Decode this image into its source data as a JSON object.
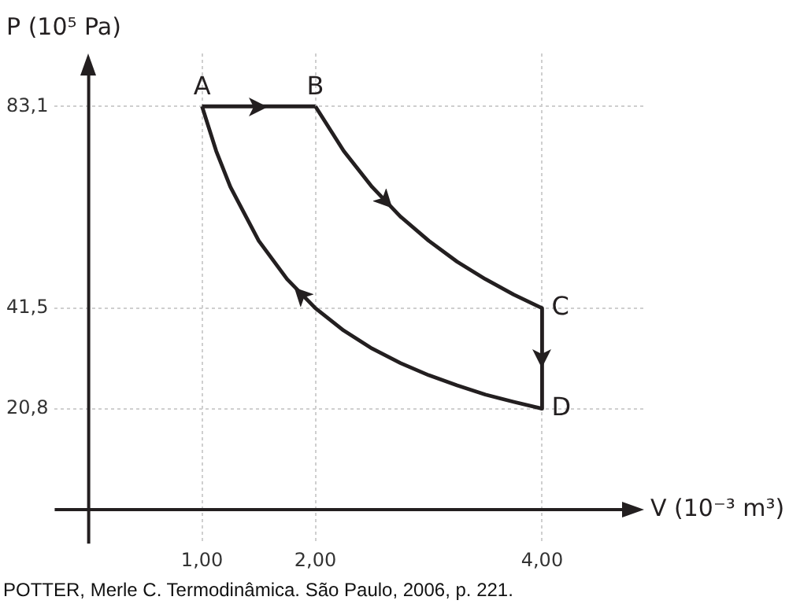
{
  "chart_data": {
    "type": "line",
    "xlabel": "V (10⁻³ m³)",
    "ylabel": "P (10⁵ Pa)",
    "series": [
      {
        "color": "#231f20",
        "x": [
          1,
          2
        ],
        "values": [
          83.1,
          83.1
        ]
      },
      {
        "color": "#231f20",
        "x": [
          2,
          2.25,
          2.5,
          2.75,
          3,
          3.25,
          3.5,
          3.75,
          4
        ],
        "values": [
          83.1,
          73.9,
          66.5,
          60.4,
          55.4,
          51.1,
          47.5,
          44.3,
          41.5
        ]
      },
      {
        "color": "#231f20",
        "x": [
          4,
          4
        ],
        "values": [
          41.5,
          20.8
        ]
      },
      {
        "color": "#231f20",
        "x": [
          1,
          1.125,
          1.25,
          1.5,
          1.75,
          2,
          2.25,
          2.5,
          2.75,
          3,
          3.25,
          3.5,
          3.75,
          4
        ],
        "values": [
          83.1,
          73.9,
          66.5,
          55.4,
          47.5,
          41.5,
          36.9,
          33.2,
          30.2,
          27.7,
          25.6,
          23.7,
          22.2,
          20.8
        ]
      }
    ],
    "xlim": [
      -0.3,
      4.9
    ],
    "ylim": [
      -7,
      94
    ],
    "xticks": [
      {
        "value": 1,
        "label": "1,00"
      },
      {
        "value": 2,
        "label": "2,00"
      },
      {
        "value": 4,
        "label": "4,00"
      }
    ],
    "yticks": [
      {
        "value": 20.8,
        "label": "20,8"
      },
      {
        "value": 41.5,
        "label": "41,5"
      },
      {
        "value": 83.1,
        "label": "83,1"
      }
    ],
    "grid": true,
    "legend": false,
    "marker": "none",
    "line_style": "solid",
    "annotations": [
      {
        "text": "A",
        "x": 1,
        "y": 83.1
      },
      {
        "text": "B",
        "x": 2,
        "y": 83.1
      },
      {
        "text": "C",
        "x": 4,
        "y": 41.5
      },
      {
        "text": "D",
        "x": 4,
        "y": 20.8
      },
      "POTTER, Merle C. Termodinâmica. São Paulo, 2006, p. 221."
    ]
  }
}
